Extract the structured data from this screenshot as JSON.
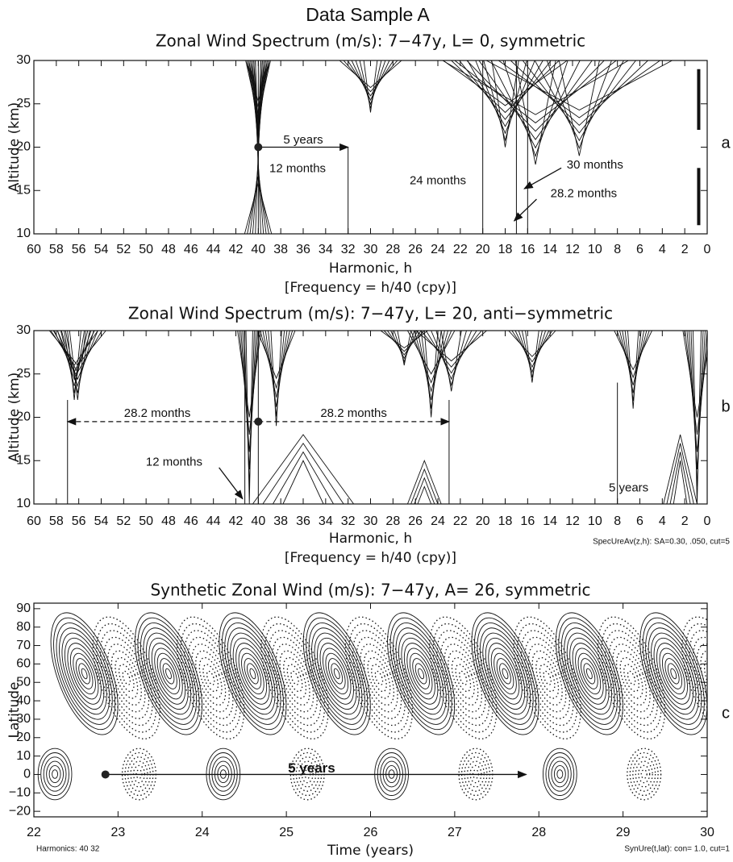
{
  "title": "Data Sample A",
  "chart_data": [
    {
      "type": "contour",
      "title": "Zonal Wind Spectrum (m/s): 7−47y, L= 0, symmetric",
      "x_label": "Harmonic, h",
      "x_sublabel": "[Frequency = h/40 (cpy)]",
      "y_label": "Altitude (km)",
      "panel_label": "a",
      "xlim": [
        60,
        0
      ],
      "ylim": [
        10,
        30
      ],
      "xticks": [
        60,
        58,
        56,
        54,
        52,
        50,
        48,
        46,
        44,
        42,
        40,
        38,
        36,
        34,
        32,
        30,
        28,
        26,
        24,
        22,
        20,
        18,
        16,
        14,
        12,
        10,
        8,
        6,
        4,
        2,
        0
      ],
      "yticks": [
        10,
        15,
        20,
        25,
        30
      ],
      "vlines": [
        {
          "x": 40,
          "y": [
            10,
            30
          ]
        },
        {
          "x": 32,
          "y": [
            10,
            20
          ]
        },
        {
          "x": 20,
          "y": [
            10,
            30
          ]
        },
        {
          "x": 17,
          "y": [
            10,
            30
          ]
        },
        {
          "x": 16,
          "y": [
            10,
            30
          ]
        }
      ],
      "arrows": [
        {
          "x": [
            40,
            32
          ],
          "y": [
            20,
            20
          ]
        },
        {
          "x": [
            13,
            16.3
          ],
          "y": [
            17.6,
            15.2
          ]
        },
        {
          "x": [
            15.2,
            17.2
          ],
          "y": [
            14,
            11.5
          ]
        }
      ],
      "points": [
        {
          "x": 40,
          "y": 20
        }
      ],
      "annotations": [
        {
          "text": "5 years",
          "x": 36,
          "y": 20.8
        },
        {
          "text": "12 months",
          "x": 36.5,
          "y": 17.5
        },
        {
          "text": "24 months",
          "x": 24,
          "y": 16.1
        },
        {
          "text": "30 months",
          "x": 10,
          "y": 17.9
        },
        {
          "text": "28.2 months",
          "x": 11,
          "y": 14.6
        }
      ]
    },
    {
      "type": "contour",
      "title": "Zonal Wind Spectrum (m/s): 7−47y, L= 20, anti−symmetric",
      "x_label": "Harmonic, h",
      "x_sublabel": "[Frequency = h/40 (cpy)]",
      "y_label": "Altitude (km)",
      "panel_label": "b",
      "footnote": "SpecUreAv(z,h): SA=0.30, .050, cut=5",
      "xlim": [
        60,
        0
      ],
      "ylim": [
        10,
        30
      ],
      "xticks": [
        60,
        58,
        56,
        54,
        52,
        50,
        48,
        46,
        44,
        42,
        40,
        38,
        36,
        34,
        32,
        30,
        28,
        26,
        24,
        22,
        20,
        18,
        16,
        14,
        12,
        10,
        8,
        6,
        4,
        2,
        0
      ],
      "yticks": [
        10,
        15,
        20,
        25,
        30
      ],
      "vlines": [
        {
          "x": 57,
          "y": [
            10,
            22
          ]
        },
        {
          "x": 40,
          "y": [
            10,
            30
          ]
        },
        {
          "x": 41.2,
          "y": [
            10,
            30
          ]
        },
        {
          "x": 23,
          "y": [
            10,
            22
          ]
        },
        {
          "x": 8,
          "y": [
            10,
            24
          ]
        }
      ],
      "arrows": [
        {
          "x": [
            40,
            57
          ],
          "y": [
            19.5,
            19.5
          ],
          "dashed": true
        },
        {
          "x": [
            40,
            23
          ],
          "y": [
            19.5,
            19.5
          ],
          "dashed": true
        },
        {
          "x": [
            43.5,
            41.4
          ],
          "y": [
            14.2,
            10.6
          ]
        }
      ],
      "points": [
        {
          "x": 40,
          "y": 19.5
        }
      ],
      "annotations": [
        {
          "text": "28.2 months",
          "x": 49,
          "y": 20.4
        },
        {
          "text": "28.2 months",
          "x": 31.5,
          "y": 20.4
        },
        {
          "text": "12 months",
          "x": 47.5,
          "y": 14.8
        },
        {
          "text": "5 years",
          "x": 7,
          "y": 11.8
        }
      ]
    },
    {
      "type": "contour",
      "title": "Synthetic Zonal Wind (m/s): 7−47y, A= 26, symmetric",
      "x_label": "Time (years)",
      "y_label": "Latitude",
      "panel_label": "c",
      "footnote_left": "Harmonics:  40 32",
      "footnote": "SynUre(t,lat): con= 1.0, cut=1",
      "xlim": [
        22,
        30
      ],
      "ylim": [
        -23,
        93
      ],
      "xticks": [
        22,
        23,
        24,
        25,
        26,
        27,
        28,
        29,
        30
      ],
      "yticks": [
        {
          "value": -20,
          "label": "−20"
        },
        {
          "value": -10,
          "label": "−10"
        },
        0,
        10,
        20,
        30,
        40,
        50,
        60,
        70,
        80,
        90
      ],
      "vlines": [],
      "arrows": [
        {
          "x": [
            22.85,
            27.85
          ],
          "y": [
            0,
            0
          ]
        }
      ],
      "points": [
        {
          "x": 22.85,
          "y": 0
        }
      ],
      "annotations": [
        {
          "text": "5 years",
          "x": 25.3,
          "y": 3,
          "bold": true
        }
      ]
    }
  ]
}
